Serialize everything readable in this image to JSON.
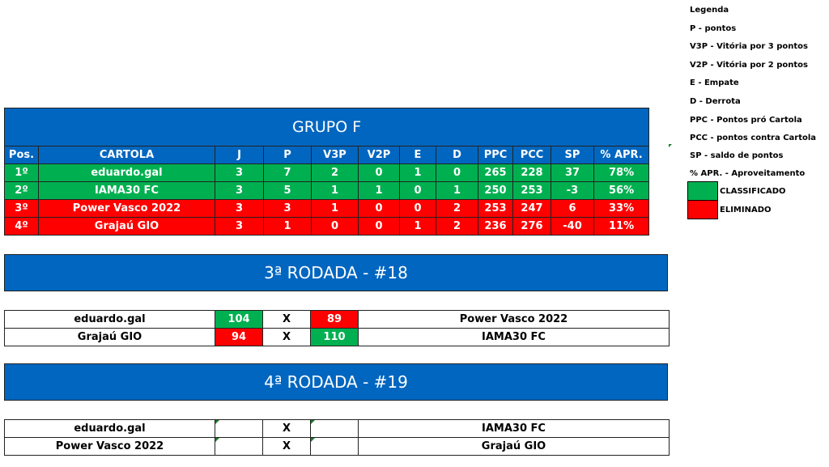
{
  "standings": {
    "title": "GRUPO F",
    "headers": [
      "Pos.",
      "CARTOLA",
      "J",
      "P",
      "V3P",
      "V2P",
      "E",
      "D",
      "PPC",
      "PCC",
      "SP",
      "% APR."
    ],
    "rows": [
      {
        "status": "classificado",
        "cells": [
          "1º",
          "eduardo.gal",
          "3",
          "7",
          "2",
          "0",
          "1",
          "0",
          "265",
          "228",
          "37",
          "78%"
        ]
      },
      {
        "status": "classificado",
        "cells": [
          "2º",
          "IAMA30 FC",
          "3",
          "5",
          "1",
          "1",
          "0",
          "1",
          "250",
          "253",
          "-3",
          "56%"
        ]
      },
      {
        "status": "eliminado",
        "cells": [
          "3º",
          "Power Vasco 2022",
          "3",
          "3",
          "1",
          "0",
          "0",
          "2",
          "253",
          "247",
          "6",
          "33%"
        ]
      },
      {
        "status": "eliminado",
        "cells": [
          "4º",
          "Grajaú GIO",
          "3",
          "1",
          "0",
          "0",
          "1",
          "2",
          "236",
          "276",
          "-40",
          "11%"
        ]
      }
    ]
  },
  "rounds": [
    {
      "title": "3ª RODADA - #18",
      "matches": [
        {
          "home": "eduardo.gal",
          "home_score": "104",
          "home_result": "win",
          "sep": "X",
          "away_score": "89",
          "away_result": "loss",
          "away": "Power Vasco 2022"
        },
        {
          "home": "Grajaú GIO",
          "home_score": "94",
          "home_result": "loss",
          "sep": "X",
          "away_score": "110",
          "away_result": "win",
          "away": "IAMA30 FC"
        }
      ]
    },
    {
      "title": "4ª RODADA - #19",
      "matches": [
        {
          "home": "eduardo.gal",
          "home_score": "",
          "home_result": "",
          "sep": "X",
          "away_score": "",
          "away_result": "",
          "away": "IAMA30 FC"
        },
        {
          "home": "Power Vasco 2022",
          "home_score": "",
          "home_result": "",
          "sep": "X",
          "away_score": "",
          "away_result": "",
          "away": "Grajaú GIO"
        }
      ]
    }
  ],
  "legend": {
    "title": "Legenda",
    "items": [
      "P - pontos",
      "V3P - Vitória por 3 pontos",
      "V2P - Vitória por 2 pontos",
      "E - Empate",
      "D - Derrota",
      "PPC - Pontos pró Cartola",
      "PCC - pontos contra Cartola",
      "SP - saldo de pontos",
      "% APR. - Aproveitamento"
    ],
    "classificado": "CLASSIFICADO",
    "eliminado": "ELIMINADO"
  },
  "colors": {
    "blue": "#0066c0",
    "green": "#00b050",
    "red": "#ff0000"
  }
}
